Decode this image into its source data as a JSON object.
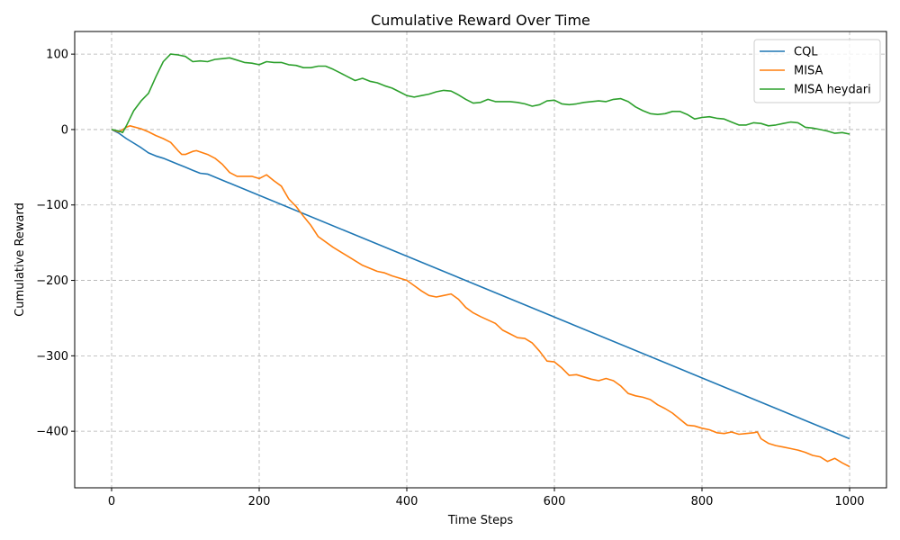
{
  "chart_data": {
    "type": "line",
    "title": "Cumulative Reward Over Time",
    "xlabel": "Time Steps",
    "ylabel": "Cumulative Reward",
    "xlim": [
      -50,
      1050
    ],
    "ylim": [
      -475,
      130
    ],
    "xticks": [
      0,
      200,
      400,
      600,
      800,
      1000
    ],
    "yticks": [
      100,
      0,
      -100,
      -200,
      -300,
      -400
    ],
    "xtick_labels": [
      "0",
      "200",
      "400",
      "600",
      "800",
      "1000"
    ],
    "ytick_labels": [
      "100",
      "0",
      "−100",
      "−200",
      "−300",
      "−400"
    ],
    "grid": true,
    "legend_position": "top-right",
    "series": [
      {
        "name": "CQL",
        "color": "#1f77b4",
        "x": [
          0,
          10,
          20,
          30,
          40,
          50,
          60,
          70,
          80,
          90,
          100,
          110,
          120,
          130,
          1000
        ],
        "y": [
          0,
          -5,
          -12,
          -18,
          -24,
          -31,
          -35,
          -38,
          -42,
          -46,
          -50,
          -54,
          -58,
          -59,
          -410
        ]
      },
      {
        "name": "MISA",
        "color": "#ff7f0e",
        "x": [
          0,
          10,
          20,
          25,
          40,
          50,
          60,
          70,
          80,
          90,
          95,
          100,
          110,
          115,
          130,
          140,
          150,
          160,
          170,
          180,
          190,
          200,
          210,
          220,
          230,
          240,
          250,
          260,
          270,
          280,
          300,
          320,
          340,
          350,
          360,
          370,
          380,
          390,
          400,
          410,
          420,
          430,
          440,
          450,
          460,
          470,
          480,
          490,
          500,
          520,
          530,
          540,
          550,
          560,
          570,
          580,
          590,
          600,
          610,
          620,
          630,
          640,
          650,
          660,
          670,
          680,
          690,
          700,
          710,
          720,
          730,
          740,
          750,
          760,
          770,
          780,
          790,
          800,
          810,
          820,
          830,
          840,
          850,
          860,
          870,
          875,
          880,
          890,
          900,
          910,
          920,
          930,
          940,
          950,
          960,
          970,
          980,
          990,
          1000
        ],
        "y": [
          0,
          -3,
          3,
          5,
          1,
          -3,
          -8,
          -12,
          -17,
          -28,
          -33,
          -33,
          -29,
          -28,
          -33,
          -38,
          -46,
          -57,
          -62,
          -62,
          -62,
          -65,
          -60,
          -68,
          -75,
          -92,
          -102,
          -115,
          -127,
          -142,
          -156,
          -168,
          -180,
          -184,
          -188,
          -190,
          -194,
          -197,
          -200,
          -207,
          -214,
          -220,
          -222,
          -220,
          -218,
          -225,
          -236,
          -243,
          -248,
          -257,
          -266,
          -271,
          -276,
          -277,
          -283,
          -294,
          -307,
          -308,
          -316,
          -326,
          -325,
          -328,
          -331,
          -333,
          -330,
          -333,
          -340,
          -350,
          -353,
          -355,
          -358,
          -365,
          -370,
          -376,
          -384,
          -392,
          -393,
          -396,
          -398,
          -402,
          -403,
          -401,
          -404,
          -403,
          -402,
          -401,
          -410,
          -416,
          -419,
          -421,
          -423,
          -425,
          -428,
          -432,
          -434,
          -440,
          -436,
          -442,
          -447
        ]
      },
      {
        "name": "MISA heydari",
        "color": "#2ca02c",
        "x": [
          0,
          10,
          15,
          20,
          30,
          40,
          50,
          60,
          70,
          80,
          90,
          100,
          110,
          120,
          130,
          140,
          150,
          160,
          170,
          180,
          190,
          200,
          210,
          220,
          230,
          240,
          250,
          260,
          270,
          280,
          290,
          300,
          310,
          320,
          330,
          340,
          350,
          360,
          370,
          380,
          390,
          400,
          410,
          420,
          430,
          440,
          450,
          460,
          470,
          480,
          490,
          500,
          510,
          520,
          530,
          540,
          550,
          560,
          570,
          580,
          590,
          600,
          610,
          620,
          630,
          640,
          650,
          660,
          670,
          680,
          690,
          700,
          710,
          720,
          730,
          740,
          750,
          760,
          770,
          780,
          790,
          800,
          810,
          820,
          830,
          840,
          850,
          860,
          870,
          880,
          890,
          900,
          910,
          920,
          930,
          940,
          950,
          960,
          970,
          980,
          990,
          1000
        ],
        "y": [
          0,
          -2,
          -4,
          5,
          25,
          38,
          48,
          70,
          90,
          100,
          99,
          97,
          90,
          91,
          90,
          93,
          94,
          95,
          92,
          89,
          88,
          86,
          90,
          89,
          89,
          86,
          85,
          82,
          82,
          84,
          84,
          80,
          75,
          70,
          65,
          68,
          64,
          62,
          58,
          55,
          50,
          45,
          43,
          45,
          47,
          50,
          52,
          51,
          46,
          40,
          35,
          36,
          40,
          37,
          37,
          37,
          36,
          34,
          31,
          33,
          38,
          39,
          34,
          33,
          34,
          36,
          37,
          38,
          37,
          40,
          41,
          37,
          30,
          25,
          21,
          20,
          21,
          24,
          24,
          20,
          14,
          16,
          17,
          15,
          14,
          10,
          6,
          6,
          9,
          8,
          5,
          6,
          8,
          10,
          9,
          3,
          2,
          0,
          -2,
          -5,
          -4,
          -6
        ]
      }
    ]
  }
}
